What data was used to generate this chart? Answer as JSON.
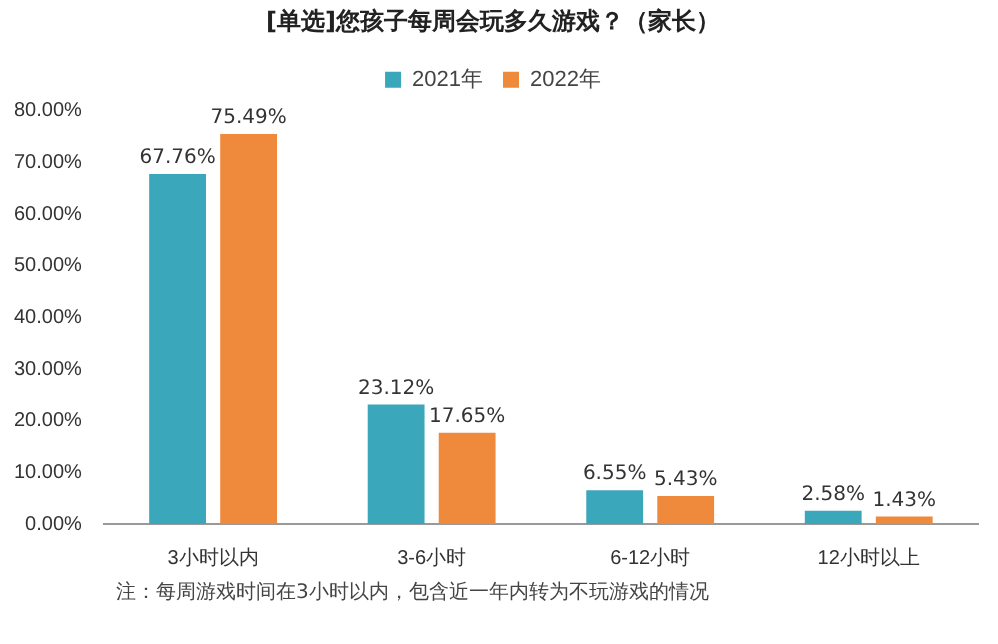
{
  "chart_data": {
    "type": "bar",
    "title": "[单选]您孩子每周会玩多久游戏？（家长）",
    "categories": [
      "3小时以内",
      "3-6小时",
      "6-12小时",
      "12小时以上"
    ],
    "series": [
      {
        "name": "2021年",
        "color": "#3ba7ba",
        "values": [
          67.76,
          23.12,
          6.55,
          2.58
        ],
        "value_labels": [
          "67.76%",
          "23.12%",
          "6.55%",
          "2.58%"
        ]
      },
      {
        "name": "2022年",
        "color": "#ef8a3d",
        "values": [
          75.49,
          17.65,
          5.43,
          1.43
        ],
        "value_labels": [
          "75.49%",
          "17.65%",
          "5.43%",
          "1.43%"
        ]
      }
    ],
    "ylim": [
      0,
      80
    ],
    "yticks": [
      {
        "value": 0,
        "label": "0.00%"
      },
      {
        "value": 10,
        "label": "10.00%"
      },
      {
        "value": 20,
        "label": "20.00%"
      },
      {
        "value": 30,
        "label": "30.00%"
      },
      {
        "value": 40,
        "label": "40.00%"
      },
      {
        "value": 50,
        "label": "50.00%"
      },
      {
        "value": 60,
        "label": "60.00%"
      },
      {
        "value": 70,
        "label": "70.00%"
      },
      {
        "value": 80,
        "label": "80.00%"
      }
    ],
    "grid": false,
    "legend": "top",
    "annotations": [
      "注：每周游戏时间在3小时以内，包含近一年内转为不玩游戏的情况"
    ]
  }
}
